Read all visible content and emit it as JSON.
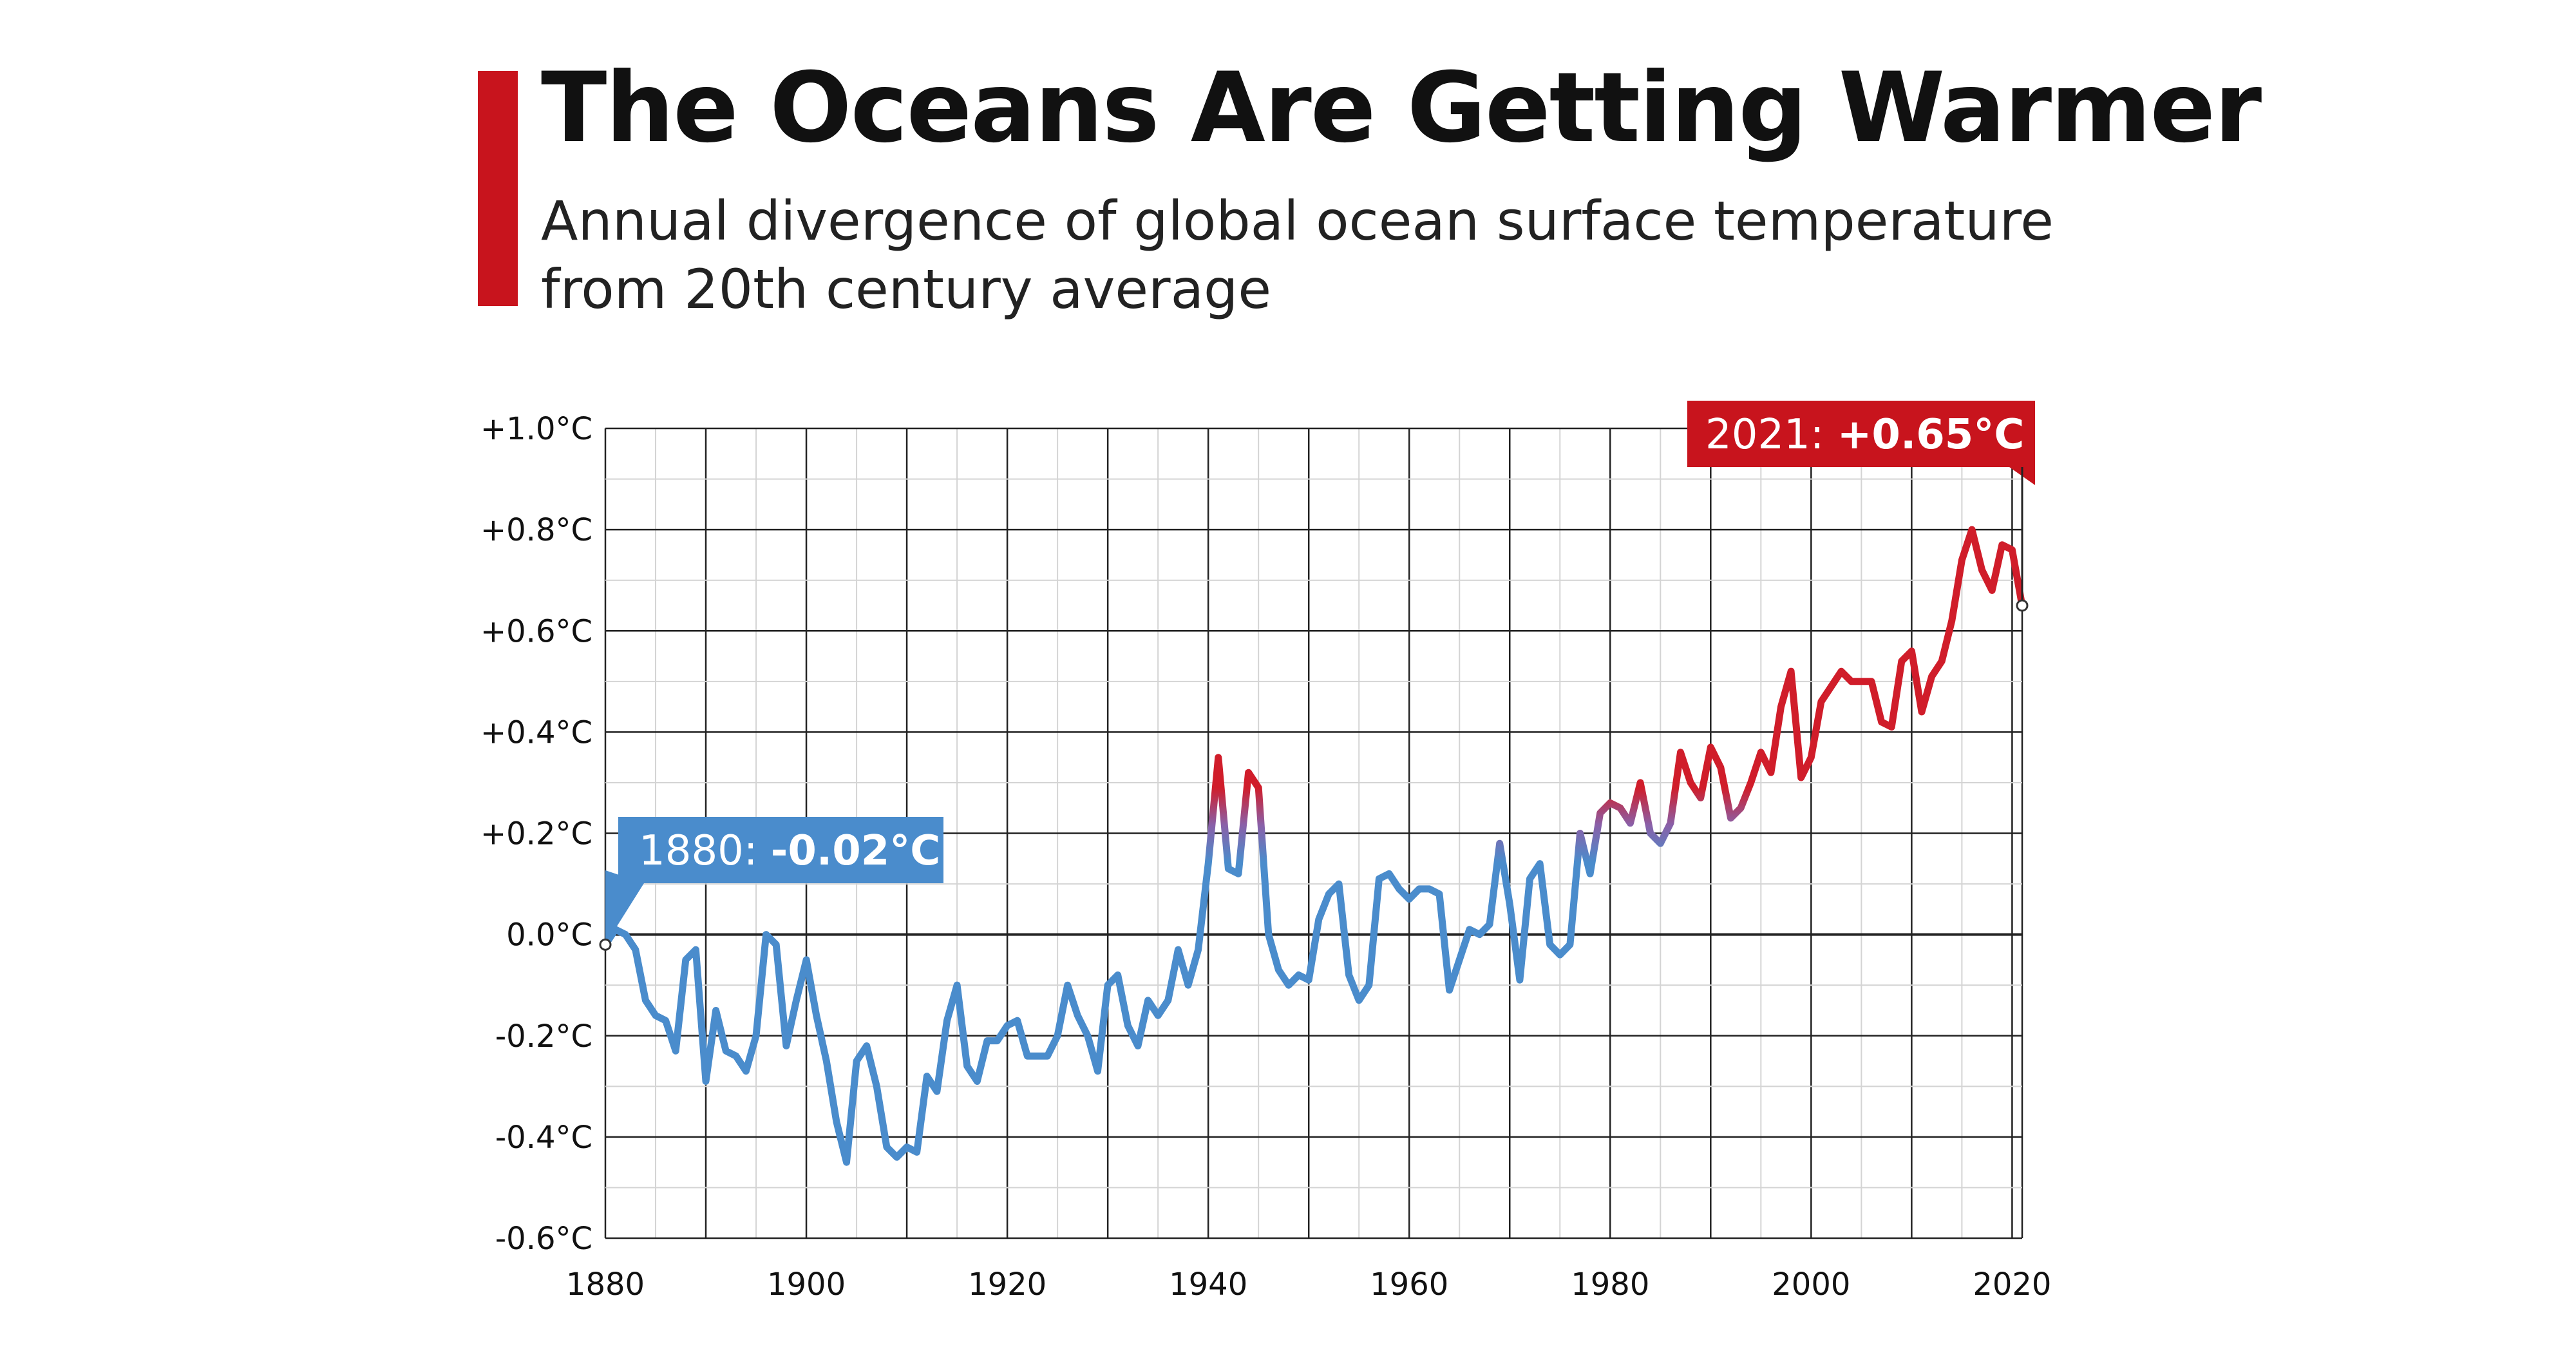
{
  "header": {
    "title": "The Oceans Are Getting Warmer",
    "subtitle": "Annual divergence of global ocean surface temperature from 20th century average"
  },
  "colors": {
    "accent_red": "#c8141d",
    "accent_blue": "#4a8ccc",
    "cold": "#4a8ccc",
    "warm": "#d01d2a"
  },
  "chart_data": {
    "type": "line",
    "title": "The Oceans Are Getting Warmer",
    "subtitle": "Annual divergence of global ocean surface temperature from 20th century average",
    "xlabel": "",
    "ylabel": "",
    "xlim": [
      1880,
      2021
    ],
    "ylim": [
      -0.6,
      1.0
    ],
    "grid": true,
    "x_ticks": [
      1880,
      1900,
      1920,
      1940,
      1960,
      1980,
      2000,
      2020
    ],
    "x_tick_labels": [
      "1880",
      "1900",
      "1920",
      "1940",
      "1960",
      "1980",
      "2000",
      "2020"
    ],
    "y_ticks": [
      1.0,
      0.8,
      0.6,
      0.4,
      0.2,
      0.0,
      -0.2,
      -0.4,
      -0.6
    ],
    "y_tick_labels": [
      "+1.0°C",
      "+0.8°C",
      "+0.6°C",
      "+0.4°C",
      "+0.2°C",
      "0.0°C",
      "-0.2°C",
      "-0.4°C",
      "-0.6°C"
    ],
    "series": [
      {
        "x": [
          1880,
          1881,
          1882,
          1883,
          1884,
          1885,
          1886,
          1887,
          1888,
          1889,
          1890,
          1891,
          1892,
          1893,
          1894,
          1895,
          1896,
          1897,
          1898,
          1899,
          1900,
          1901,
          1902,
          1903,
          1904,
          1905,
          1906,
          1907,
          1908,
          1909,
          1910,
          1911,
          1912,
          1913,
          1914,
          1915,
          1916,
          1917,
          1918,
          1919,
          1920,
          1921,
          1922,
          1923,
          1924,
          1925,
          1926,
          1927,
          1928,
          1929,
          1930,
          1931,
          1932,
          1933,
          1934,
          1935,
          1936,
          1937,
          1938,
          1939,
          1940,
          1941,
          1942,
          1943,
          1944,
          1945,
          1946,
          1947,
          1948,
          1949,
          1950,
          1951,
          1952,
          1953,
          1954,
          1955,
          1956,
          1957,
          1958,
          1959,
          1960,
          1961,
          1962,
          1963,
          1964,
          1965,
          1966,
          1967,
          1968,
          1969,
          1970,
          1971,
          1972,
          1973,
          1974,
          1975,
          1976,
          1977,
          1978,
          1979,
          1980,
          1981,
          1982,
          1983,
          1984,
          1985,
          1986,
          1987,
          1988,
          1989,
          1990,
          1991,
          1992,
          1993,
          1994,
          1995,
          1996,
          1997,
          1998,
          1999,
          2000,
          2001,
          2002,
          2003,
          2004,
          2005,
          2006,
          2007,
          2008,
          2009,
          2010,
          2011,
          2012,
          2013,
          2014,
          2015,
          2016,
          2017,
          2018,
          2019,
          2020,
          2021
        ],
        "values": [
          -0.02,
          0.01,
          0.0,
          -0.03,
          -0.13,
          -0.16,
          -0.17,
          -0.23,
          -0.05,
          -0.03,
          -0.29,
          -0.15,
          -0.23,
          -0.24,
          -0.27,
          -0.2,
          0.0,
          -0.02,
          -0.22,
          -0.13,
          -0.05,
          -0.16,
          -0.25,
          -0.37,
          -0.45,
          -0.25,
          -0.22,
          -0.3,
          -0.42,
          -0.44,
          -0.42,
          -0.43,
          -0.28,
          -0.31,
          -0.17,
          -0.1,
          -0.26,
          -0.29,
          -0.21,
          -0.21,
          -0.18,
          -0.17,
          -0.24,
          -0.24,
          -0.24,
          -0.2,
          -0.1,
          -0.16,
          -0.2,
          -0.27,
          -0.1,
          -0.08,
          -0.18,
          -0.22,
          -0.13,
          -0.16,
          -0.13,
          -0.03,
          -0.1,
          -0.03,
          0.14,
          0.35,
          0.13,
          0.12,
          0.32,
          0.29,
          0.0,
          -0.07,
          -0.1,
          -0.08,
          -0.09,
          0.03,
          0.08,
          0.1,
          -0.08,
          -0.13,
          -0.1,
          0.11,
          0.12,
          0.09,
          0.07,
          0.09,
          0.09,
          0.08,
          -0.11,
          -0.05,
          0.01,
          0.0,
          0.02,
          0.18,
          0.06,
          -0.09,
          0.11,
          0.14,
          -0.02,
          -0.04,
          -0.02,
          0.2,
          0.12,
          0.24,
          0.26,
          0.25,
          0.22,
          0.3,
          0.2,
          0.18,
          0.22,
          0.36,
          0.3,
          0.27,
          0.37,
          0.33,
          0.23,
          0.25,
          0.3,
          0.36,
          0.32,
          0.45,
          0.52,
          0.31,
          0.35,
          0.46,
          0.49,
          0.52,
          0.5,
          0.5,
          0.5,
          0.42,
          0.41,
          0.54,
          0.56,
          0.44,
          0.51,
          0.54,
          0.62,
          0.74,
          0.8,
          0.72,
          0.68,
          0.77,
          0.76,
          0.65
        ]
      }
    ],
    "annotations": [
      {
        "x": 1880,
        "y": -0.02,
        "year": "1880: ",
        "value": "-0.02°C",
        "color": "#4a8ccc"
      },
      {
        "x": 2021,
        "y": 0.65,
        "year": "2021: ",
        "value": "+0.65°C",
        "color": "#c8141d"
      }
    ]
  }
}
